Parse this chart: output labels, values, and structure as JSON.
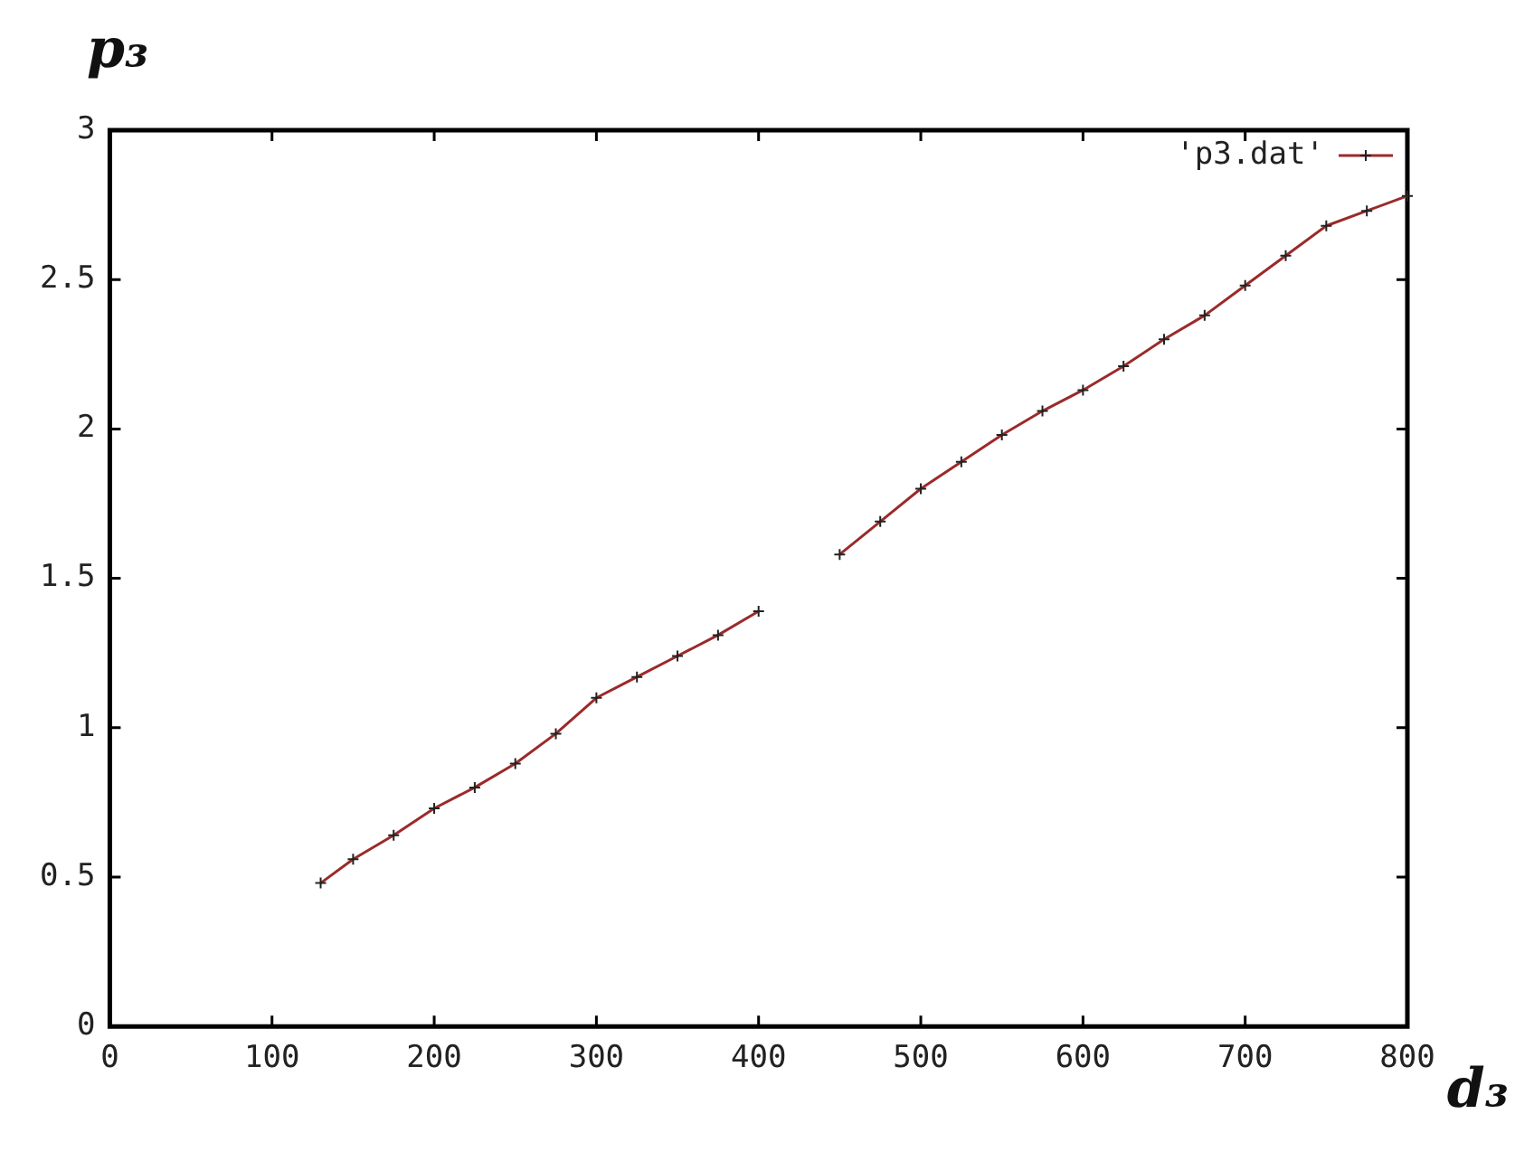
{
  "chart_data": {
    "type": "line",
    "xlabel": "d₃",
    "ylabel": "p₃",
    "x": [
      130,
      150,
      175,
      200,
      225,
      250,
      275,
      300,
      325,
      350,
      375,
      400,
      425,
      450,
      475,
      500,
      525,
      550,
      575,
      600,
      625,
      650,
      675,
      700,
      725,
      750,
      775,
      800
    ],
    "series": [
      {
        "name": "'p3.dat'",
        "color": "#9b2a2a",
        "values": [
          0.48,
          0.56,
          0.64,
          0.73,
          0.8,
          0.88,
          0.98,
          1.1,
          1.17,
          1.24,
          1.31,
          1.39,
          null,
          1.58,
          1.69,
          1.8,
          1.89,
          1.98,
          2.06,
          2.13,
          2.21,
          2.3,
          2.38,
          2.48,
          2.58,
          2.68,
          2.73,
          2.78
        ]
      }
    ],
    "xlim": [
      0,
      800
    ],
    "xticks": [
      0,
      100,
      200,
      300,
      400,
      500,
      600,
      700,
      800
    ],
    "ylim": [
      0,
      3
    ],
    "yticks": [
      0,
      0.5,
      1,
      1.5,
      2,
      2.5,
      3
    ],
    "grid": false,
    "legend": "top right",
    "marker": "cross",
    "line_style": "solid"
  }
}
